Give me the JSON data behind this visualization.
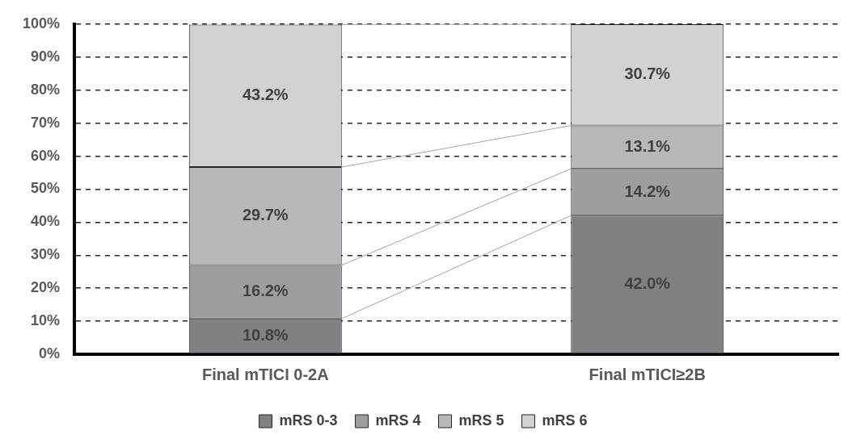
{
  "chart_data": {
    "type": "bar",
    "stacked": true,
    "categories": [
      "Final mTICI 0-2A",
      "Final mTICI≥2B"
    ],
    "series": [
      {
        "name": "mRS 0-3",
        "color": "#808184",
        "values": [
          10.8,
          42.0
        ],
        "value_labels": [
          "10.8%",
          "42.0%"
        ]
      },
      {
        "name": "mRS 4",
        "color": "#9d9ea1",
        "values": [
          16.2,
          14.2
        ],
        "value_labels": [
          "16.2%",
          "14.2%"
        ]
      },
      {
        "name": "mRS 5",
        "color": "#b7b8bb",
        "values": [
          29.7,
          13.1
        ],
        "value_labels": [
          "29.7%",
          "13.1%"
        ]
      },
      {
        "name": "mRS 6",
        "color": "#d1d2d4",
        "values": [
          43.2,
          30.7
        ],
        "value_labels": [
          "43.2%",
          "30.7%"
        ]
      }
    ],
    "ylim": [
      0,
      100
    ],
    "yticks": [
      {
        "value": 0,
        "label": "0%"
      },
      {
        "value": 10,
        "label": "10%"
      },
      {
        "value": 20,
        "label": "20%"
      },
      {
        "value": 30,
        "label": "30%"
      },
      {
        "value": 40,
        "label": "40%"
      },
      {
        "value": 50,
        "label": "50%"
      },
      {
        "value": 60,
        "label": "60%"
      },
      {
        "value": 70,
        "label": "70%"
      },
      {
        "value": 80,
        "label": "80%"
      },
      {
        "value": 90,
        "label": "90%"
      },
      {
        "value": 100,
        "label": "100%"
      }
    ],
    "grid": "y",
    "legend": "bottom"
  }
}
